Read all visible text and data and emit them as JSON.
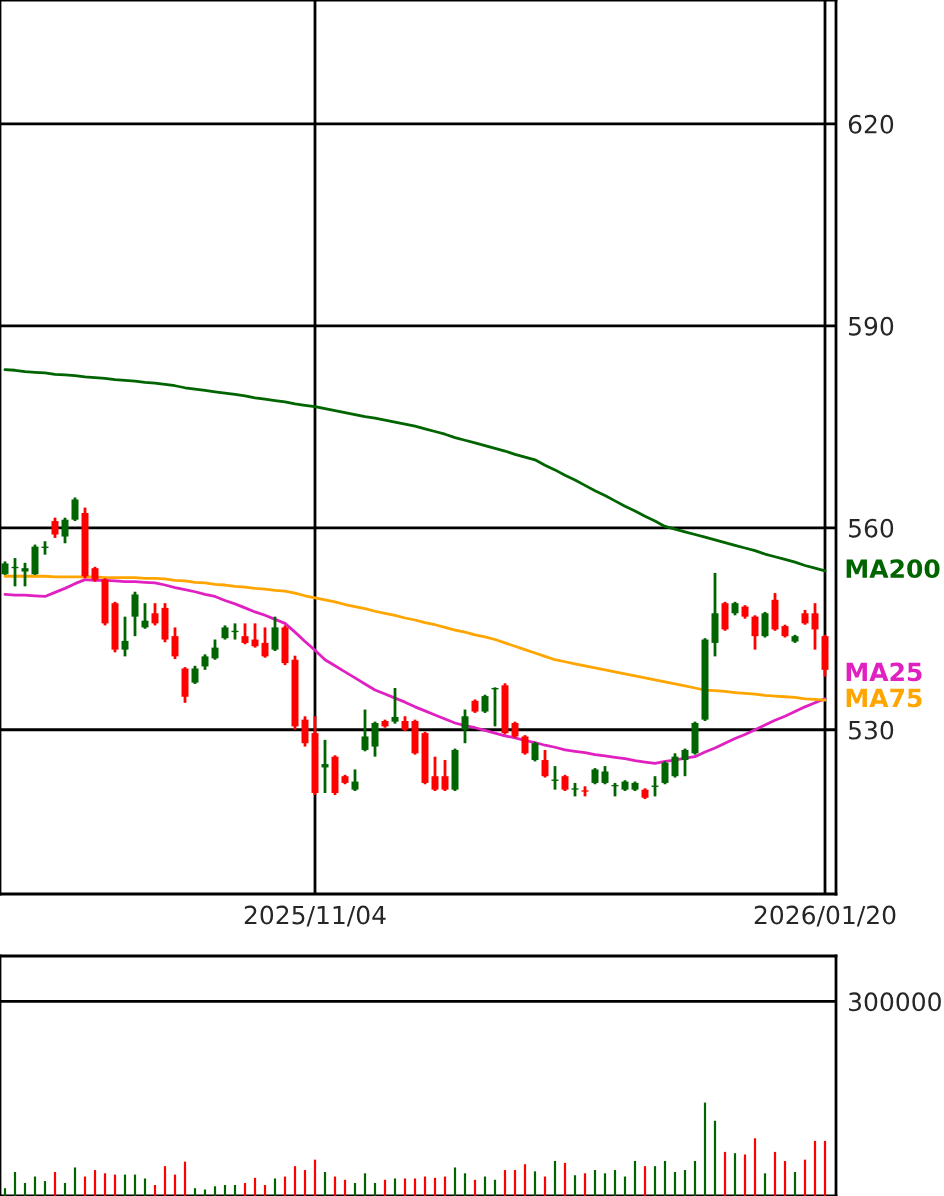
{
  "chart_data": [
    {
      "type": "candlestick",
      "categories": [
        null,
        null,
        null,
        null,
        null,
        null,
        null,
        null,
        null,
        null,
        null,
        null,
        null,
        null,
        null,
        null,
        null,
        null,
        null,
        null,
        null,
        null,
        null,
        null,
        null,
        null,
        null,
        null,
        null,
        null,
        null,
        "2025/11/04",
        null,
        null,
        null,
        null,
        null,
        null,
        null,
        null,
        null,
        null,
        null,
        null,
        null,
        null,
        null,
        null,
        null,
        null,
        null,
        null,
        null,
        null,
        null,
        null,
        null,
        null,
        null,
        null,
        null,
        null,
        null,
        null,
        null,
        null,
        null,
        null,
        null,
        null,
        null,
        null,
        null,
        null,
        null,
        null,
        null,
        null,
        null,
        null,
        null,
        null,
        "2026/01/20"
      ],
      "ohlc": [
        [
          553.1,
          555.0,
          553.0,
          554.7
        ],
        [
          554.0,
          555.5,
          551.3,
          554.2
        ],
        [
          553.5,
          554.8,
          551.3,
          554.0
        ],
        [
          553.1,
          557.5,
          553.0,
          557.2
        ],
        [
          557.0,
          558.0,
          556.0,
          557.2
        ],
        [
          561.0,
          561.5,
          558.5,
          559.0
        ],
        [
          558.7,
          561.5,
          557.7,
          561.2
        ],
        [
          561.2,
          564.5,
          561.0,
          564.2
        ],
        [
          562.2,
          563.0,
          552.5,
          552.8
        ],
        [
          554.0,
          554.2,
          552.0,
          552.3
        ],
        [
          552.3,
          552.5,
          545.5,
          545.8
        ],
        [
          548.8,
          549.0,
          541.5,
          541.9
        ],
        [
          541.9,
          546.8,
          540.9,
          543.2
        ],
        [
          546.8,
          550.5,
          543.9,
          550.1
        ],
        [
          545.2,
          548.8,
          545.0,
          546.2
        ],
        [
          547.3,
          548.8,
          545.5,
          545.8
        ],
        [
          548.1,
          548.8,
          543.0,
          543.4
        ],
        [
          543.9,
          545.2,
          540.5,
          540.9
        ],
        [
          539.1,
          539.3,
          534.0,
          534.9
        ],
        [
          537.0,
          539.5,
          536.8,
          539.1
        ],
        [
          539.4,
          541.2,
          538.9,
          540.9
        ],
        [
          540.6,
          543.4,
          540.4,
          542.2
        ],
        [
          543.6,
          545.5,
          543.4,
          545.2
        ],
        [
          544.5,
          545.8,
          543.4,
          544.7
        ],
        [
          543.9,
          545.8,
          542.7,
          542.9
        ],
        [
          543.4,
          545.8,
          542.2,
          542.4
        ],
        [
          542.9,
          545.2,
          540.7,
          540.9
        ],
        [
          541.9,
          546.8,
          541.7,
          545.2
        ],
        [
          545.2,
          545.5,
          539.6,
          539.9
        ],
        [
          540.4,
          541.0,
          530.0,
          530.5
        ],
        [
          531.5,
          532.0,
          527.5,
          528.0
        ],
        [
          529.5,
          532.0,
          520.3,
          520.6
        ],
        [
          524.4,
          528.5,
          520.6,
          524.9
        ],
        [
          526.0,
          526.2,
          520.3,
          520.6
        ],
        [
          523.1,
          523.3,
          521.9,
          522.1
        ],
        [
          521.1,
          524.1,
          520.9,
          522.3
        ],
        [
          527.0,
          533.0,
          526.8,
          529.0
        ],
        [
          527.5,
          531.2,
          526.0,
          531.0
        ],
        [
          531.3,
          531.5,
          530.3,
          530.5
        ],
        [
          531.2,
          536.2,
          530.9,
          531.9
        ],
        [
          531.3,
          532.0,
          529.8,
          530.0
        ],
        [
          531.3,
          531.5,
          526.3,
          526.5
        ],
        [
          529.5,
          529.7,
          521.9,
          522.1
        ],
        [
          523.1,
          526.0,
          520.9,
          521.1
        ],
        [
          523.1,
          525.5,
          520.9,
          521.1
        ],
        [
          521.1,
          527.2,
          520.9,
          527.0
        ],
        [
          530.0,
          533.0,
          528.0,
          532.0
        ],
        [
          534.3,
          534.5,
          532.5,
          532.7
        ],
        [
          532.7,
          535.2,
          532.5,
          535.0
        ],
        [
          536.0,
          536.3,
          530.5,
          536.2
        ],
        [
          536.6,
          536.9,
          529.3,
          529.5
        ],
        [
          531.0,
          531.2,
          528.8,
          529.0
        ],
        [
          529.0,
          529.2,
          526.3,
          526.5
        ],
        [
          525.5,
          528.2,
          525.3,
          528.0
        ],
        [
          525.5,
          527.0,
          522.9,
          523.1
        ],
        [
          522.4,
          524.6,
          521.1,
          522.6
        ],
        [
          523.1,
          523.3,
          520.9,
          521.1
        ],
        [
          521.1,
          522.1,
          520.1,
          521.3
        ],
        [
          521.0,
          521.6,
          520.1,
          520.8
        ],
        [
          522.1,
          524.3,
          521.9,
          524.1
        ],
        [
          522.1,
          524.6,
          521.9,
          523.8
        ],
        [
          521.6,
          522.1,
          520.1,
          521.8
        ],
        [
          521.1,
          522.5,
          520.9,
          522.3
        ],
        [
          521.1,
          522.3,
          520.9,
          522.1
        ],
        [
          521.1,
          521.3,
          519.7,
          519.9
        ],
        [
          521.5,
          523.1,
          520.1,
          521.7
        ],
        [
          522.1,
          525.3,
          521.9,
          525.1
        ],
        [
          523.1,
          526.5,
          522.9,
          526.0
        ],
        [
          525.5,
          527.2,
          523.1,
          527.0
        ],
        [
          526.5,
          531.2,
          526.3,
          531.0
        ],
        [
          531.5,
          543.6,
          531.3,
          543.4
        ],
        [
          542.9,
          553.3,
          540.9,
          547.3
        ],
        [
          548.8,
          549.0,
          544.7,
          544.9
        ],
        [
          547.3,
          549.0,
          547.0,
          548.8
        ],
        [
          548.3,
          548.5,
          546.5,
          546.8
        ],
        [
          546.8,
          547.0,
          541.9,
          543.9
        ],
        [
          543.9,
          547.5,
          543.7,
          547.3
        ],
        [
          549.3,
          550.3,
          544.7,
          544.9
        ],
        [
          545.4,
          545.6,
          543.7,
          543.9
        ],
        [
          543.1,
          544.1,
          542.9,
          543.9
        ],
        [
          547.3,
          547.8,
          545.6,
          545.8
        ],
        [
          547.3,
          548.8,
          541.9,
          544.9
        ],
        [
          543.9,
          544.1,
          537.9,
          538.9
        ]
      ],
      "colors": [
        "#006400",
        "#006400",
        "#006400",
        "#006400",
        "#006400",
        "#ff0000",
        "#006400",
        "#006400",
        "#ff0000",
        "#ff0000",
        "#ff0000",
        "#ff0000",
        "#006400",
        "#006400",
        "#006400",
        "#ff0000",
        "#ff0000",
        "#ff0000",
        "#ff0000",
        "#006400",
        "#006400",
        "#006400",
        "#006400",
        "#006400",
        "#ff0000",
        "#ff0000",
        "#ff0000",
        "#006400",
        "#ff0000",
        "#ff0000",
        "#ff0000",
        "#ff0000",
        "#006400",
        "#ff0000",
        "#ff0000",
        "#006400",
        "#006400",
        "#006400",
        "#ff0000",
        "#006400",
        "#ff0000",
        "#ff0000",
        "#ff0000",
        "#ff0000",
        "#ff0000",
        "#006400",
        "#006400",
        "#ff0000",
        "#006400",
        "#006400",
        "#ff0000",
        "#ff0000",
        "#ff0000",
        "#006400",
        "#ff0000",
        "#006400",
        "#ff0000",
        "#006400",
        "#ff0000",
        "#006400",
        "#006400",
        "#006400",
        "#006400",
        "#006400",
        "#ff0000",
        "#006400",
        "#006400",
        "#006400",
        "#006400",
        "#006400",
        "#006400",
        "#006400",
        "#ff0000",
        "#006400",
        "#ff0000",
        "#ff0000",
        "#006400",
        "#ff0000",
        "#ff0000",
        "#006400",
        "#ff0000",
        "#ff0000",
        "#ff0000"
      ],
      "series": [
        {
          "name": "MA200",
          "type": "line",
          "color": "#006400",
          "values": [
            583.5,
            583.4,
            583.2,
            583.1,
            583.0,
            582.8,
            582.7,
            582.6,
            582.4,
            582.3,
            582.2,
            582.0,
            581.9,
            581.8,
            581.6,
            581.5,
            581.3,
            581.1,
            580.8,
            580.6,
            580.4,
            580.2,
            580.0,
            579.8,
            579.6,
            579.3,
            579.1,
            578.9,
            578.7,
            578.4,
            578.2,
            578.0,
            577.7,
            577.4,
            577.1,
            576.8,
            576.5,
            576.3,
            576.0,
            575.7,
            575.4,
            575.1,
            574.7,
            574.3,
            573.9,
            573.4,
            573.0,
            572.6,
            572.2,
            571.8,
            571.4,
            570.9,
            570.5,
            570.1,
            569.3,
            568.6,
            567.8,
            567.1,
            566.3,
            565.5,
            564.8,
            564.0,
            563.2,
            562.5,
            561.7,
            561.0,
            560.2,
            559.8,
            559.4,
            559.0,
            558.6,
            558.2,
            557.8,
            557.4,
            557.0,
            556.6,
            556.1,
            555.7,
            555.3,
            554.9,
            554.4,
            554.0,
            553.6
          ]
        },
        {
          "name": "MA25",
          "type": "line",
          "color": "#e020c0",
          "values": [
            550.1,
            550.0,
            550.0,
            549.9,
            549.8,
            550.4,
            551.0,
            551.7,
            552.3,
            552.2,
            552.2,
            552.1,
            552.0,
            552.0,
            551.9,
            551.8,
            551.5,
            551.1,
            550.8,
            550.5,
            550.1,
            549.8,
            549.2,
            548.7,
            548.1,
            547.5,
            547.0,
            546.4,
            545.8,
            544.5,
            543.1,
            541.8,
            540.4,
            539.5,
            538.6,
            537.7,
            536.8,
            535.9,
            535.3,
            534.7,
            534.1,
            533.4,
            532.8,
            532.2,
            531.6,
            531.0,
            530.6,
            530.3,
            529.9,
            529.5,
            529.1,
            528.8,
            528.4,
            528.1,
            527.7,
            527.4,
            527.0,
            526.8,
            526.6,
            526.3,
            526.1,
            525.9,
            525.7,
            525.4,
            525.2,
            525.0,
            525.3,
            525.5,
            525.8,
            526.0,
            526.7,
            527.3,
            528.0,
            528.7,
            529.3,
            530.0,
            530.7,
            531.4,
            532.0,
            532.7,
            533.4,
            534.0,
            534.6
          ]
        },
        {
          "name": "MA75",
          "type": "line",
          "color": "#ffa500",
          "values": [
            552.8,
            552.8,
            552.8,
            552.8,
            552.8,
            552.7,
            552.7,
            552.7,
            552.7,
            552.7,
            552.6,
            552.6,
            552.6,
            552.6,
            552.5,
            552.5,
            552.4,
            552.2,
            552.1,
            551.9,
            551.8,
            551.6,
            551.5,
            551.3,
            551.2,
            551.0,
            550.9,
            550.7,
            550.6,
            550.3,
            549.9,
            549.6,
            549.3,
            549.0,
            548.6,
            548.3,
            548.0,
            547.6,
            547.3,
            547.0,
            546.6,
            546.3,
            545.9,
            545.6,
            545.2,
            544.8,
            544.5,
            544.1,
            543.8,
            543.4,
            542.9,
            542.4,
            541.9,
            541.4,
            540.9,
            540.4,
            540.1,
            539.8,
            539.5,
            539.2,
            538.9,
            538.6,
            538.3,
            538.0,
            537.7,
            537.4,
            537.1,
            536.8,
            536.5,
            536.2,
            535.9,
            535.8,
            535.7,
            535.5,
            535.4,
            535.3,
            535.1,
            535.0,
            534.9,
            534.8,
            534.6,
            534.5,
            534.4
          ]
        }
      ],
      "ylim": [
        505.6,
        638.4
      ],
      "yticks": [
        530,
        560,
        590,
        620
      ],
      "grid": true
    },
    {
      "type": "bar",
      "categories": [
        null,
        null,
        null,
        null,
        null,
        null,
        null,
        null,
        null,
        null,
        null,
        null,
        null,
        null,
        null,
        null,
        null,
        null,
        null,
        null,
        null,
        null,
        null,
        null,
        null,
        null,
        null,
        null,
        null,
        null,
        null,
        null,
        null,
        null,
        null,
        null,
        null,
        null,
        null,
        null,
        null,
        null,
        null,
        null,
        null,
        null,
        null,
        null,
        null,
        null,
        null,
        null,
        null,
        null,
        null,
        null,
        null,
        null,
        null,
        null,
        null,
        null,
        null,
        null,
        null,
        null,
        null,
        null,
        null,
        null,
        null,
        null,
        null,
        null,
        null,
        null,
        null,
        null,
        null,
        null,
        null,
        null,
        null
      ],
      "values": [
        12000,
        37000,
        20000,
        30000,
        23000,
        37000,
        20000,
        44000,
        30000,
        40000,
        35000,
        33000,
        33000,
        33000,
        27000,
        17000,
        46000,
        33000,
        53000,
        12000,
        10000,
        15000,
        17000,
        17000,
        20000,
        28000,
        17000,
        27000,
        30000,
        46000,
        40000,
        56000,
        37000,
        30000,
        25000,
        20000,
        35000,
        20000,
        25000,
        27000,
        27000,
        27000,
        30000,
        28000,
        30000,
        44000,
        35000,
        25000,
        30000,
        25000,
        40000,
        40000,
        49000,
        38000,
        30000,
        54000,
        51000,
        32000,
        35000,
        40000,
        35000,
        40000,
        30000,
        54000,
        46000,
        46000,
        54000,
        37000,
        40000,
        54000,
        144000,
        116000,
        68000,
        66000,
        64000,
        89000,
        35000,
        68000,
        54000,
        37000,
        56000,
        85000,
        85000
      ],
      "colors": [
        "#006400",
        "#006400",
        "#006400",
        "#006400",
        "#006400",
        "#ff0000",
        "#006400",
        "#006400",
        "#ff0000",
        "#ff0000",
        "#ff0000",
        "#ff0000",
        "#006400",
        "#006400",
        "#006400",
        "#ff0000",
        "#ff0000",
        "#ff0000",
        "#ff0000",
        "#006400",
        "#006400",
        "#006400",
        "#006400",
        "#006400",
        "#ff0000",
        "#ff0000",
        "#ff0000",
        "#006400",
        "#ff0000",
        "#ff0000",
        "#ff0000",
        "#ff0000",
        "#006400",
        "#ff0000",
        "#ff0000",
        "#006400",
        "#006400",
        "#006400",
        "#ff0000",
        "#006400",
        "#ff0000",
        "#ff0000",
        "#ff0000",
        "#ff0000",
        "#ff0000",
        "#006400",
        "#006400",
        "#ff0000",
        "#006400",
        "#006400",
        "#ff0000",
        "#ff0000",
        "#ff0000",
        "#006400",
        "#ff0000",
        "#006400",
        "#ff0000",
        "#006400",
        "#ff0000",
        "#006400",
        "#006400",
        "#006400",
        "#006400",
        "#006400",
        "#ff0000",
        "#006400",
        "#006400",
        "#006400",
        "#006400",
        "#006400",
        "#006400",
        "#006400",
        "#ff0000",
        "#006400",
        "#ff0000",
        "#ff0000",
        "#006400",
        "#ff0000",
        "#ff0000",
        "#006400",
        "#ff0000",
        "#ff0000",
        "#ff0000"
      ],
      "ylim": [
        0,
        370000
      ],
      "yticks": [
        300000
      ],
      "grid": "y",
      "tick_labels": "y"
    }
  ]
}
